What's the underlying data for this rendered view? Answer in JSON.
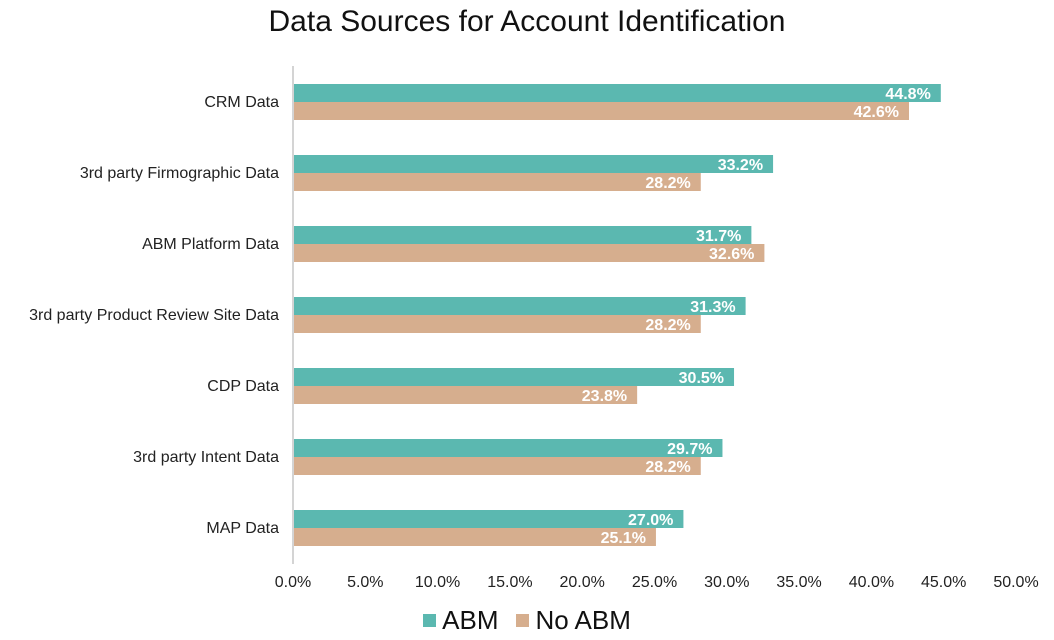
{
  "chart_data": {
    "type": "bar",
    "orientation": "horizontal",
    "title": "Data Sources for Account Identification",
    "xlabel": "",
    "ylabel": "",
    "xlim": [
      0,
      50
    ],
    "ticks": [
      "0.0%",
      "5.0%",
      "10.0%",
      "15.0%",
      "20.0%",
      "25.0%",
      "30.0%",
      "35.0%",
      "40.0%",
      "45.0%",
      "50.0%"
    ],
    "tick_values": [
      0,
      5,
      10,
      15,
      20,
      25,
      30,
      35,
      40,
      45,
      50
    ],
    "categories": [
      "CRM Data",
      "3rd party Firmographic Data",
      "ABM Platform Data",
      "3rd party Product Review Site Data",
      "CDP Data",
      "3rd party Intent Data",
      "MAP Data"
    ],
    "series": [
      {
        "name": "ABM",
        "color": "#5bb8b0",
        "values": [
          44.8,
          33.2,
          31.7,
          31.3,
          30.5,
          29.7,
          27.0
        ],
        "labels": [
          "44.8%",
          "33.2%",
          "31.7%",
          "31.3%",
          "30.5%",
          "29.7%",
          "27.0%"
        ]
      },
      {
        "name": "No ABM",
        "color": "#d6ae8e",
        "values": [
          42.6,
          28.2,
          32.6,
          28.2,
          23.8,
          28.2,
          25.1
        ],
        "labels": [
          "42.6%",
          "28.2%",
          "32.6%",
          "28.2%",
          "23.8%",
          "28.2%",
          "25.1%"
        ]
      }
    ],
    "grid": false,
    "legend_position": "bottom"
  }
}
